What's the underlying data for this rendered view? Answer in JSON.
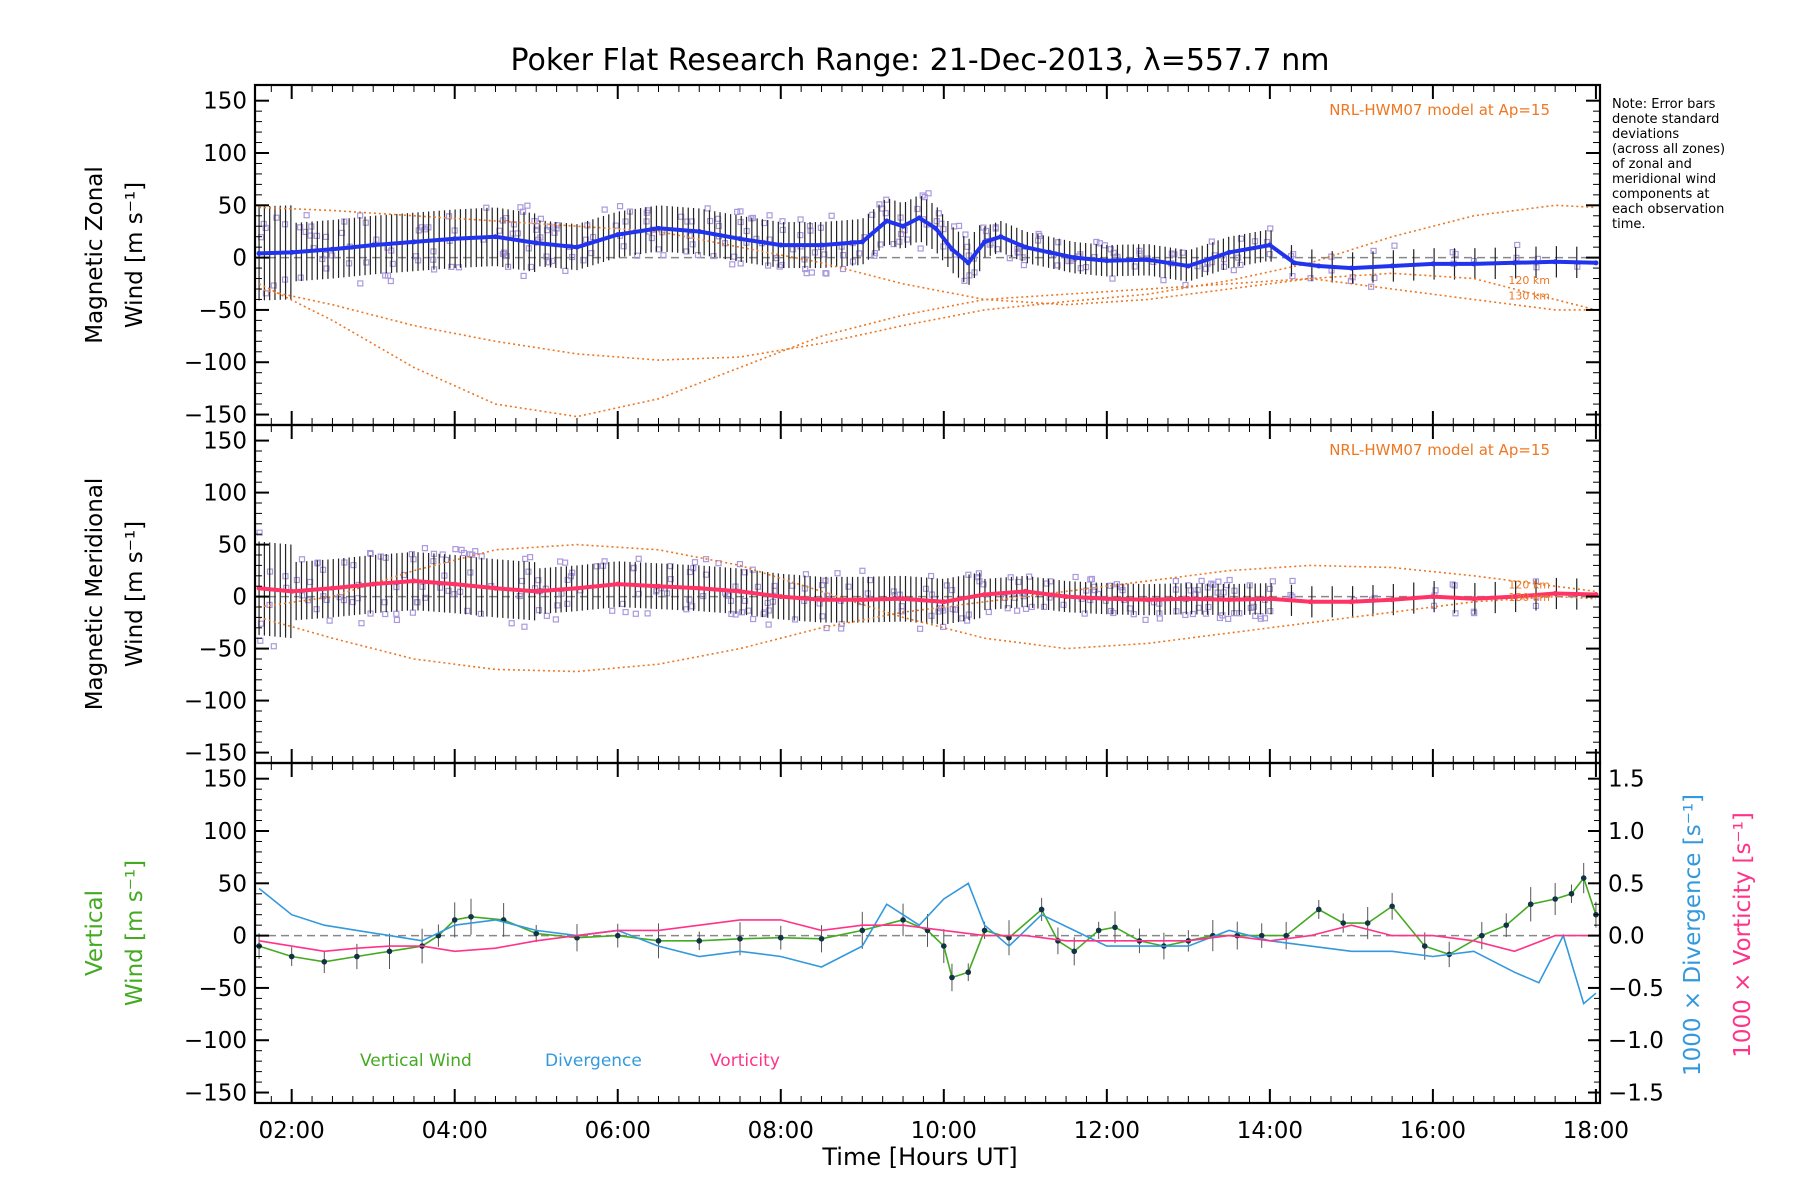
{
  "chart_data": {
    "type": "line",
    "title": "Poker Flat Research Range: 21-Dec-2013, λ=557.7 nm",
    "xlabel": "Time [Hours UT]",
    "xlim": [
      1.55,
      18.05
    ],
    "x_ticks": [
      2,
      4,
      6,
      8,
      10,
      12,
      14,
      16,
      18
    ],
    "x_tick_labels": [
      "02:00",
      "04:00",
      "06:00",
      "08:00",
      "10:00",
      "12:00",
      "14:00",
      "16:00",
      "18:00"
    ],
    "note": [
      "Note: Error bars",
      "denote standard",
      "deviations",
      "(across all zones)",
      "of zonal and",
      "meridional wind",
      "components at",
      "each observation",
      "time."
    ],
    "panels": [
      {
        "id": "zonal",
        "ylabel": [
          "Magnetic Zonal",
          "Wind [m s⁻¹]"
        ],
        "ylim": [
          -160,
          165
        ],
        "y_ticks": [
          -150,
          -100,
          -50,
          0,
          50,
          100,
          150
        ],
        "model_label": "NRL-HWM07 model at Ap=15",
        "model_alt_labels": [
          "120 km",
          "130 km"
        ],
        "series_color": "#2233ee",
        "series": {
          "name": "Zonal wind (mean)",
          "x": [
            1.6,
            2.0,
            2.5,
            3.0,
            3.5,
            4.0,
            4.5,
            5.0,
            5.5,
            6.0,
            6.5,
            7.0,
            7.5,
            8.0,
            8.5,
            9.0,
            9.3,
            9.5,
            9.7,
            9.9,
            10.1,
            10.3,
            10.5,
            10.7,
            11.0,
            11.3,
            11.6,
            12.0,
            12.5,
            13.0,
            13.5,
            14.0,
            14.3,
            14.6,
            15.0,
            15.5,
            16.0,
            16.5,
            17.0,
            17.5,
            18.0
          ],
          "values": [
            4,
            5,
            8,
            12,
            15,
            18,
            20,
            14,
            10,
            22,
            28,
            25,
            18,
            12,
            12,
            15,
            35,
            30,
            38,
            28,
            8,
            -5,
            15,
            20,
            10,
            5,
            0,
            -3,
            -2,
            -8,
            5,
            12,
            -5,
            -8,
            -10,
            -8,
            -6,
            -6,
            -5,
            -4,
            -5
          ]
        },
        "model_curves": [
          {
            "x": [
              1.6,
              2.5,
              3.5,
              4.5,
              5.5,
              6.5,
              7.5,
              8.5,
              9.5,
              10.5,
              11.5,
              12.5,
              13.5,
              14.5,
              15.5,
              16.5,
              17.5,
              18.0
            ],
            "values": [
              -25,
              -60,
              -105,
              -140,
              -152,
              -135,
              -105,
              -75,
              -55,
              -40,
              -35,
              -30,
              -25,
              -20,
              -30,
              -40,
              -50,
              -50
            ]
          },
          {
            "x": [
              1.6,
              2.5,
              3.5,
              4.5,
              5.5,
              6.5,
              7.5,
              8.5,
              9.5,
              10.5,
              11.5,
              12.5,
              13.5,
              14.5,
              15.5,
              16.5,
              17.5,
              18.0
            ],
            "values": [
              -30,
              -45,
              -65,
              -80,
              -92,
              -98,
              -95,
              -82,
              -65,
              -50,
              -42,
              -35,
              -22,
              -5,
              20,
              40,
              50,
              48
            ]
          },
          {
            "x": [
              1.6,
              2.5,
              3.5,
              4.5,
              5.5,
              6.5,
              7.5,
              8.5,
              9.5,
              10.5,
              11.5,
              12.5,
              13.5,
              14.5,
              15.5,
              16.5,
              17.5,
              18.0
            ],
            "values": [
              48,
              45,
              40,
              35,
              30,
              25,
              10,
              -5,
              -25,
              -40,
              -45,
              -40,
              -30,
              -20,
              -15,
              -20,
              -40,
              -50
            ]
          }
        ]
      },
      {
        "id": "meridional",
        "ylabel": [
          "Magnetic Meridional",
          "Wind [m s⁻¹]"
        ],
        "ylim": [
          -160,
          165
        ],
        "y_ticks": [
          -150,
          -100,
          -50,
          0,
          50,
          100,
          150
        ],
        "model_label": "NRL-HWM07 model at Ap=15",
        "model_alt_labels": [
          "120 km",
          "130 km"
        ],
        "series_color": "#ff3366",
        "series": {
          "name": "Meridional wind (mean)",
          "x": [
            1.6,
            2.0,
            2.5,
            3.0,
            3.5,
            4.0,
            4.5,
            5.0,
            5.5,
            6.0,
            6.5,
            7.0,
            7.5,
            8.0,
            8.5,
            9.0,
            9.5,
            10.0,
            10.5,
            11.0,
            11.5,
            12.0,
            12.5,
            13.0,
            13.5,
            14.0,
            14.5,
            15.0,
            15.5,
            16.0,
            16.5,
            17.0,
            17.5,
            18.0
          ],
          "values": [
            8,
            5,
            8,
            12,
            15,
            12,
            8,
            5,
            8,
            12,
            10,
            8,
            5,
            0,
            -3,
            -3,
            -2,
            -5,
            2,
            5,
            0,
            -2,
            -3,
            -2,
            -3,
            -2,
            -5,
            -5,
            -3,
            0,
            -2,
            0,
            3,
            2
          ]
        },
        "model_curves": [
          {
            "x": [
              1.6,
              2.5,
              3.5,
              4.5,
              5.5,
              6.5,
              7.5,
              8.5,
              9.5,
              10.5,
              11.5,
              12.5,
              13.5,
              14.5,
              15.5,
              16.5,
              17.5,
              18.0
            ],
            "values": [
              -20,
              -40,
              -60,
              -70,
              -72,
              -65,
              -50,
              -30,
              -15,
              -5,
              5,
              15,
              25,
              30,
              28,
              20,
              10,
              5
            ]
          },
          {
            "x": [
              1.6,
              2.5,
              3.5,
              4.5,
              5.5,
              6.5,
              7.5,
              8.5,
              9.5,
              10.5,
              11.5,
              12.5,
              13.5,
              14.5,
              15.5,
              16.5,
              17.5,
              18.0
            ],
            "values": [
              -10,
              0,
              25,
              45,
              50,
              45,
              30,
              5,
              -20,
              -40,
              -50,
              -45,
              -35,
              -25,
              -15,
              -5,
              0,
              -2
            ]
          }
        ]
      },
      {
        "id": "vertical",
        "ylabel": [
          "Vertical",
          "Wind [m s⁻¹]"
        ],
        "ylim": [
          -160,
          165
        ],
        "y_ticks": [
          -150,
          -100,
          -50,
          0,
          50,
          100,
          150
        ],
        "right_axis": {
          "ylim": [
            -1.6,
            1.65
          ],
          "y_ticks": [
            -1.5,
            -1.0,
            -0.5,
            0.0,
            0.5,
            1.0,
            1.5
          ],
          "y_tick_labels": [
            "−1.5",
            "−1.0",
            "−0.5",
            "0.0",
            "0.5",
            "1.0",
            "1.5"
          ],
          "label_divergence": "1000 × Divergence [s⁻¹]",
          "label_vorticity": "1000 × Vorticity [s⁻¹]"
        },
        "legend": [
          "Vertical Wind",
          "Divergence",
          "Vorticity"
        ],
        "series": [
          {
            "name": "Vertical Wind",
            "color": "#44aa22",
            "axis": "left",
            "x": [
              1.6,
              2.0,
              2.4,
              2.8,
              3.2,
              3.6,
              3.8,
              4.0,
              4.2,
              4.6,
              5.0,
              5.5,
              6.0,
              6.5,
              7.0,
              7.5,
              8.0,
              8.5,
              9.0,
              9.5,
              9.8,
              10.0,
              10.1,
              10.3,
              10.5,
              10.8,
              11.2,
              11.4,
              11.6,
              11.9,
              12.1,
              12.4,
              12.7,
              13.0,
              13.3,
              13.6,
              13.9,
              14.2,
              14.6,
              14.9,
              15.2,
              15.5,
              15.9,
              16.2,
              16.6,
              16.9,
              17.2,
              17.5,
              17.7,
              17.85,
              18.0
            ],
            "values": [
              -10,
              -20,
              -25,
              -20,
              -15,
              -10,
              0,
              15,
              18,
              15,
              2,
              -2,
              0,
              -5,
              -5,
              -3,
              -2,
              -3,
              5,
              15,
              5,
              -10,
              -40,
              -35,
              5,
              -2,
              25,
              -5,
              -15,
              5,
              8,
              -5,
              -10,
              -5,
              0,
              0,
              0,
              0,
              25,
              12,
              12,
              28,
              -10,
              -18,
              0,
              10,
              30,
              35,
              40,
              55,
              20
            ]
          },
          {
            "name": "Divergence",
            "color": "#3399dd",
            "axis": "right",
            "x": [
              1.6,
              2.0,
              2.4,
              2.8,
              3.2,
              3.6,
              4.0,
              4.5,
              5.0,
              5.5,
              6.0,
              6.5,
              7.0,
              7.5,
              8.0,
              8.5,
              9.0,
              9.3,
              9.7,
              10.0,
              10.3,
              10.5,
              10.8,
              11.2,
              11.6,
              12.0,
              12.5,
              13.0,
              13.5,
              14.0,
              14.5,
              15.0,
              15.5,
              16.0,
              16.5,
              17.0,
              17.3,
              17.6,
              17.85,
              18.0
            ],
            "values": [
              0.45,
              0.2,
              0.1,
              0.05,
              0.0,
              -0.05,
              0.1,
              0.15,
              0.05,
              0.0,
              0.05,
              -0.1,
              -0.2,
              -0.15,
              -0.2,
              -0.3,
              -0.1,
              0.3,
              0.1,
              0.35,
              0.5,
              0.1,
              -0.1,
              0.2,
              0.05,
              -0.1,
              -0.1,
              -0.1,
              0.05,
              -0.05,
              -0.1,
              -0.15,
              -0.15,
              -0.2,
              -0.15,
              -0.35,
              -0.45,
              0.0,
              -0.65,
              -0.55
            ]
          },
          {
            "name": "Vorticity",
            "color": "#ff3388",
            "axis": "right",
            "x": [
              1.6,
              2.0,
              2.4,
              2.8,
              3.2,
              3.6,
              4.0,
              4.5,
              5.0,
              5.5,
              6.0,
              6.5,
              7.0,
              7.5,
              8.0,
              8.5,
              9.0,
              9.5,
              10.0,
              10.5,
              11.0,
              11.5,
              12.0,
              12.5,
              13.0,
              13.5,
              14.0,
              14.5,
              15.0,
              15.5,
              16.0,
              16.5,
              17.0,
              17.5,
              18.0
            ],
            "values": [
              -0.05,
              -0.1,
              -0.15,
              -0.12,
              -0.1,
              -0.1,
              -0.15,
              -0.12,
              -0.05,
              0.0,
              0.05,
              0.05,
              0.1,
              0.15,
              0.15,
              0.05,
              0.1,
              0.1,
              0.05,
              0.0,
              0.0,
              -0.05,
              -0.05,
              -0.05,
              -0.05,
              0.0,
              -0.05,
              0.0,
              0.1,
              0.0,
              0.0,
              -0.05,
              -0.15,
              0.0,
              0.0
            ]
          }
        ]
      }
    ]
  },
  "colors": {
    "axis": "#000000",
    "model": "#ee7722",
    "zero_line": "#888888",
    "scatter": "#aa99dd",
    "errbar": "#222222",
    "vertical": "#44aa22",
    "divergence": "#3399dd",
    "vorticity": "#ff3388"
  }
}
